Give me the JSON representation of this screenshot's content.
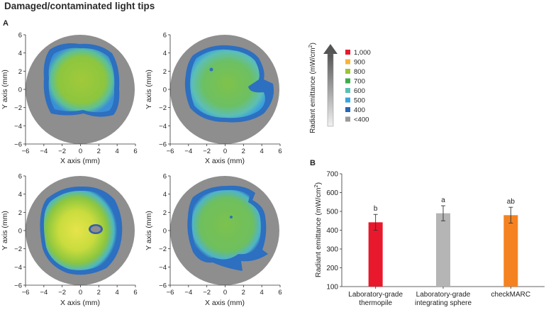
{
  "header": {
    "title": "Damaged/contaminated light tips"
  },
  "panels": {
    "a_label": "A",
    "b_label": "B"
  },
  "beam_maps": {
    "xlabel": "X axis (mm)",
    "ylabel": "Y axis (mm)",
    "ticks": [
      "−6",
      "−4",
      "−2",
      "0",
      "2",
      "4",
      "6"
    ],
    "tick_values": [
      -6,
      -4,
      -2,
      0,
      2,
      4,
      6
    ],
    "axis_range": [
      -6,
      6
    ],
    "maps": [
      {
        "id": "top-left",
        "profile": "irregular blotchy spot with blue mottled border"
      },
      {
        "id": "top-right",
        "profile": "rounded spot with notch on right edge"
      },
      {
        "id": "bottom-left",
        "profile": "bright yellow-green spot with dark hole right of center"
      },
      {
        "id": "bottom-right",
        "profile": "irregular spot with ragged edges"
      }
    ]
  },
  "legend": {
    "axis_title": "Radiant emittance (mW/cm",
    "axis_title_sup": "2",
    "axis_title_end": ")",
    "entries": [
      {
        "label": "1,000",
        "color": "#e8192c"
      },
      {
        "label": "900",
        "color": "#f5b43a"
      },
      {
        "label": "800",
        "color": "#9cc534"
      },
      {
        "label": "700",
        "color": "#3aae48"
      },
      {
        "label": "600",
        "color": "#58c1b5"
      },
      {
        "label": "500",
        "color": "#38a4de"
      },
      {
        "label": "400",
        "color": "#2767b5"
      },
      {
        "label": "<400",
        "color": "#9a9a9a"
      }
    ]
  },
  "chart_data": {
    "type": "bar",
    "title": "",
    "xlabel": "",
    "ylabel": "Radiant emittance (mW/cm",
    "ylabel_sup": "2",
    "ylabel_end": ")",
    "ylim": [
      100,
      700
    ],
    "yticks": [
      100,
      200,
      300,
      400,
      500,
      600,
      700
    ],
    "categories": [
      [
        "Laboratory-grade",
        "thermopile"
      ],
      [
        "Laboratory-grade",
        "integrating sphere"
      ],
      [
        "checkMARC"
      ]
    ],
    "values": [
      442,
      490,
      480
    ],
    "errors": [
      42,
      40,
      42
    ],
    "sig_labels": [
      "b",
      "a",
      "ab"
    ],
    "colors": [
      "#e8192c",
      "#b5b5b5",
      "#f58220"
    ]
  }
}
